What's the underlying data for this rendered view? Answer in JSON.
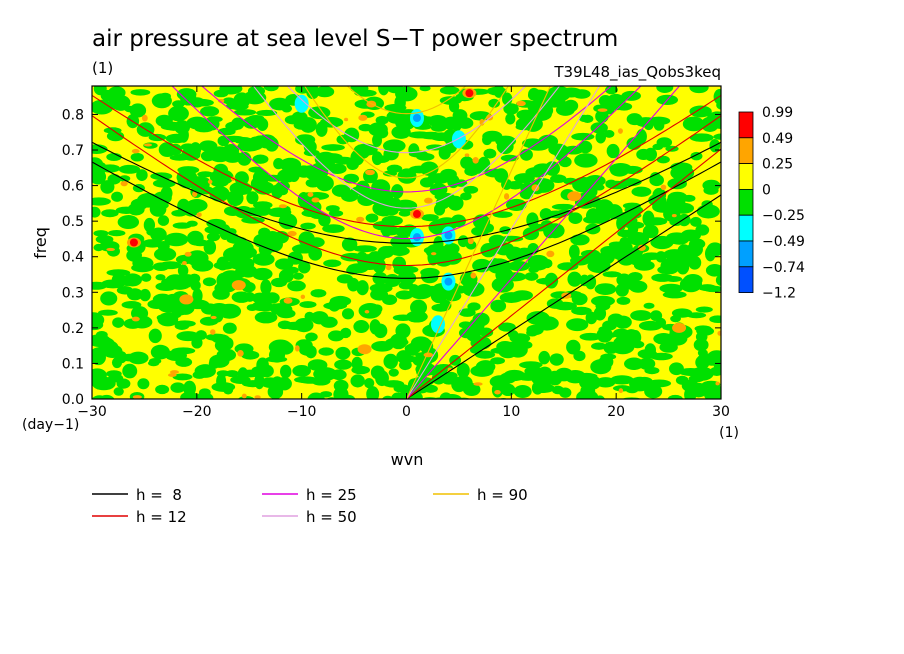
{
  "chart_data": {
    "type": "heatmap",
    "title": "air pressure at sea level S−T power spectrum",
    "title_unit": "(1)",
    "run_label": "T39L48_ias_Qobs3keq",
    "xlabel": "wvn",
    "ylabel": "freq",
    "x_unit": "(1)",
    "y_unit": "(day−1)",
    "xlim": [
      -30,
      30
    ],
    "ylim": [
      0,
      0.88
    ],
    "x_ticks": [
      -30,
      -20,
      -10,
      0,
      10,
      20,
      30
    ],
    "x_tick_labels": [
      "−30",
      "−20",
      "−10",
      "0",
      "10",
      "20",
      "30"
    ],
    "y_ticks": [
      0,
      0.1,
      0.2,
      0.3,
      0.4,
      0.5,
      0.6,
      0.7,
      0.8
    ],
    "y_tick_labels": [
      "0.0",
      "0.1",
      "0.2",
      "0.3",
      "0.4",
      "0.5",
      "0.6",
      "0.7",
      "0.8"
    ],
    "colorbar": {
      "labels": [
        "0.99",
        "0.49",
        "0.25",
        "0",
        "−0.25",
        "−0.49",
        "−0.74",
        "−1.2"
      ],
      "colors": [
        "#ff0000",
        "#ffa500",
        "#ffff00",
        "#00e000",
        "#00ffff",
        "#00a0ff",
        "#0050ff"
      ]
    },
    "field_colors": {
      "positive_low": "#ffff00",
      "negative_low": "#00e000"
    },
    "hotspots": [
      {
        "wvn": 6,
        "freq": 0.86,
        "value": 0.9
      },
      {
        "wvn": 1,
        "freq": 0.52,
        "value": 0.9
      },
      {
        "wvn": 1,
        "freq": 0.455,
        "value": -0.6
      },
      {
        "wvn": 4,
        "freq": 0.46,
        "value": -0.6
      },
      {
        "wvn": 4,
        "freq": 0.33,
        "value": -0.6
      },
      {
        "wvn": 1,
        "freq": 0.79,
        "value": -0.6
      },
      {
        "wvn": 5,
        "freq": 0.73,
        "value": -0.4
      },
      {
        "wvn": -26,
        "freq": 0.44,
        "value": 0.9
      },
      {
        "wvn": -21,
        "freq": 0.28,
        "value": 0.4
      },
      {
        "wvn": -16,
        "freq": 0.32,
        "value": 0.4
      },
      {
        "wvn": 3,
        "freq": 0.21,
        "value": -0.4
      },
      {
        "wvn": -10,
        "freq": 0.83,
        "value": -0.4
      },
      {
        "wvn": 16,
        "freq": 0.57,
        "value": 0.4
      },
      {
        "wvn": 26,
        "freq": 0.2,
        "value": 0.4
      },
      {
        "wvn": -4,
        "freq": 0.14,
        "value": 0.4
      }
    ],
    "series": [
      {
        "name": "h =  8",
        "color": "#000000"
      },
      {
        "name": "h = 12",
        "color": "#e00000"
      },
      {
        "name": "h = 25",
        "color": "#e000e0"
      },
      {
        "name": "h = 50",
        "color": "#e0a0e0"
      },
      {
        "name": "h = 90",
        "color": "#f0c000"
      }
    ],
    "grid": false,
    "legend_position": "bottom"
  }
}
